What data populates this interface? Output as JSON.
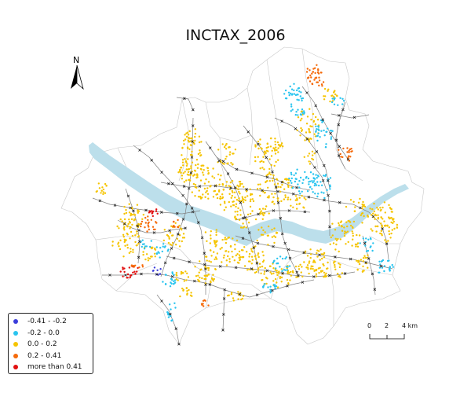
{
  "title": "INCTAX_2006",
  "north_arrow": {
    "label": "N"
  },
  "legend": {
    "items": [
      {
        "label": "-0.41 - -0.2",
        "color": "#3a3ddb"
      },
      {
        "label": "-0.2 - 0.0",
        "color": "#29c4ef"
      },
      {
        "label": "0.0 - 0.2",
        "color": "#f5c400"
      },
      {
        "label": "0.2 - 0.41",
        "color": "#f56a0a"
      },
      {
        "label": "more than 0.41",
        "color": "#e10f0f"
      }
    ]
  },
  "scale_bar": {
    "ticks": [
      "0",
      "2",
      "4"
    ],
    "unit": "km"
  },
  "colors": {
    "river": "#bcdfeb",
    "boundary": "#c8c8c8",
    "road": "#808080",
    "station": "#222222"
  }
}
